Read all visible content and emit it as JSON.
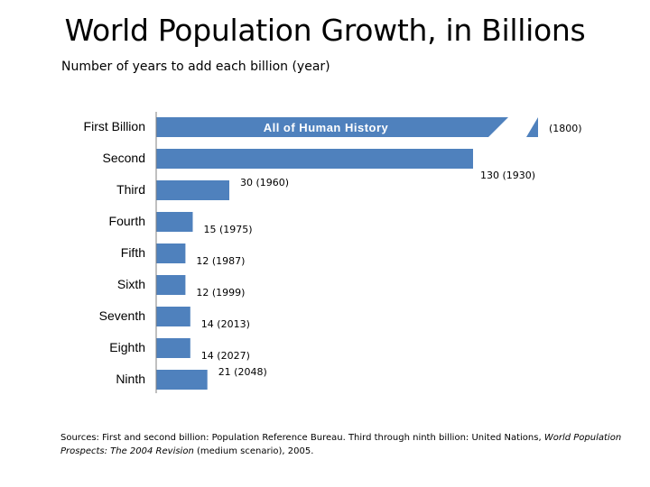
{
  "chart_data": {
    "type": "bar",
    "orientation": "horizontal",
    "title": "World Population Growth, in Billions",
    "subtitle": "Number of years to add each billion (year)",
    "categories": [
      "First Billion",
      "Second",
      "Third",
      "Fourth",
      "Fifth",
      "Sixth",
      "Seventh",
      "Eighth",
      "Ninth"
    ],
    "values": [
      null,
      130,
      30,
      15,
      12,
      12,
      14,
      14,
      21
    ],
    "data_labels": [
      "(1800)",
      "130 (1930)",
      "30 (1960)",
      "15 (1975)",
      "12 (1987)",
      "12 (1999)",
      "14 (2013)",
      "14 (2027)",
      "21 (2048)"
    ],
    "annotation": "All of Human History",
    "first_bar_broken_axis": true,
    "xlim": [
      0,
      150
    ],
    "color": "#4f81bd"
  },
  "source": {
    "prefix": "Sources: First and second billion: Population Reference Bureau. Third through ninth billion: United Nations,",
    "italic1": "World Population Prospects: The 2004 Revision",
    "suffix": "(medium scenario), 2005."
  }
}
